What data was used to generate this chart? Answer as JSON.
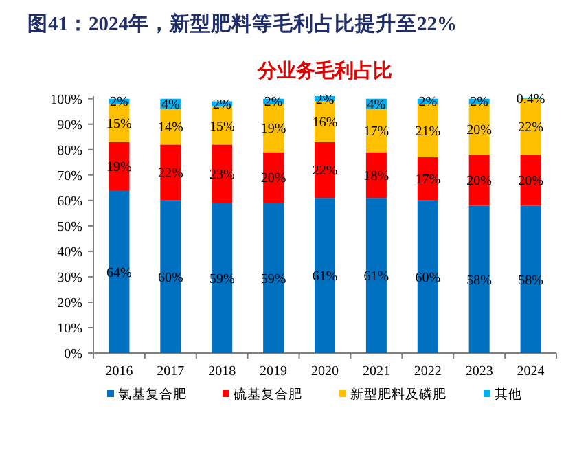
{
  "chart_data": {
    "type": "bar",
    "title": "图41：2024年，新型肥料等毛利占比提升至22%",
    "subtitle": "分业务毛利占比",
    "categories": [
      "2016",
      "2017",
      "2018",
      "2019",
      "2020",
      "2021",
      "2022",
      "2023",
      "2024"
    ],
    "series": [
      {
        "name": "氯基复合肥",
        "color": "#0070c0",
        "values": [
          64,
          60,
          59,
          59,
          61,
          61,
          60,
          58,
          58
        ],
        "value_labels": [
          "64%",
          "60%",
          "59%",
          "59%",
          "61%",
          "61%",
          "60%",
          "58%",
          "58%"
        ]
      },
      {
        "name": "硫基复合肥",
        "color": "#ff0000",
        "values": [
          19,
          22,
          23,
          20,
          22,
          18,
          17,
          20,
          20
        ],
        "value_labels": [
          "19%",
          "22%",
          "23%",
          "20%",
          "22%",
          "18%",
          "17%",
          "20%",
          "20%"
        ]
      },
      {
        "name": "新型肥料及磷肥",
        "color": "#ffc000",
        "values": [
          15,
          14,
          15,
          19,
          16,
          17,
          21,
          20,
          22
        ],
        "value_labels": [
          "15%",
          "14%",
          "15%",
          "19%",
          "16%",
          "17%",
          "21%",
          "20%",
          "22%"
        ]
      },
      {
        "name": "其他",
        "color": "#00b0f0",
        "values": [
          2,
          4,
          2,
          2,
          2,
          4,
          2,
          2,
          0.4
        ],
        "value_labels": [
          "2%",
          "4%",
          "2%",
          "2%",
          "2%",
          "4%",
          "2%",
          "2%",
          "0.4%"
        ]
      }
    ],
    "stacked": true,
    "legend": "bottom",
    "ylim": [
      0,
      101
    ],
    "yticks": [
      {
        "value": 0,
        "label": "0%"
      },
      {
        "value": 10,
        "label": "10%"
      },
      {
        "value": 20,
        "label": "20%"
      },
      {
        "value": 30,
        "label": "30%"
      },
      {
        "value": 40,
        "label": "40%"
      },
      {
        "value": 50,
        "label": "50%"
      },
      {
        "value": 60,
        "label": "60%"
      },
      {
        "value": 70,
        "label": "70%"
      },
      {
        "value": 80,
        "label": "80%"
      },
      {
        "value": 90,
        "label": "90%"
      },
      {
        "value": 100,
        "label": "100%"
      }
    ]
  }
}
